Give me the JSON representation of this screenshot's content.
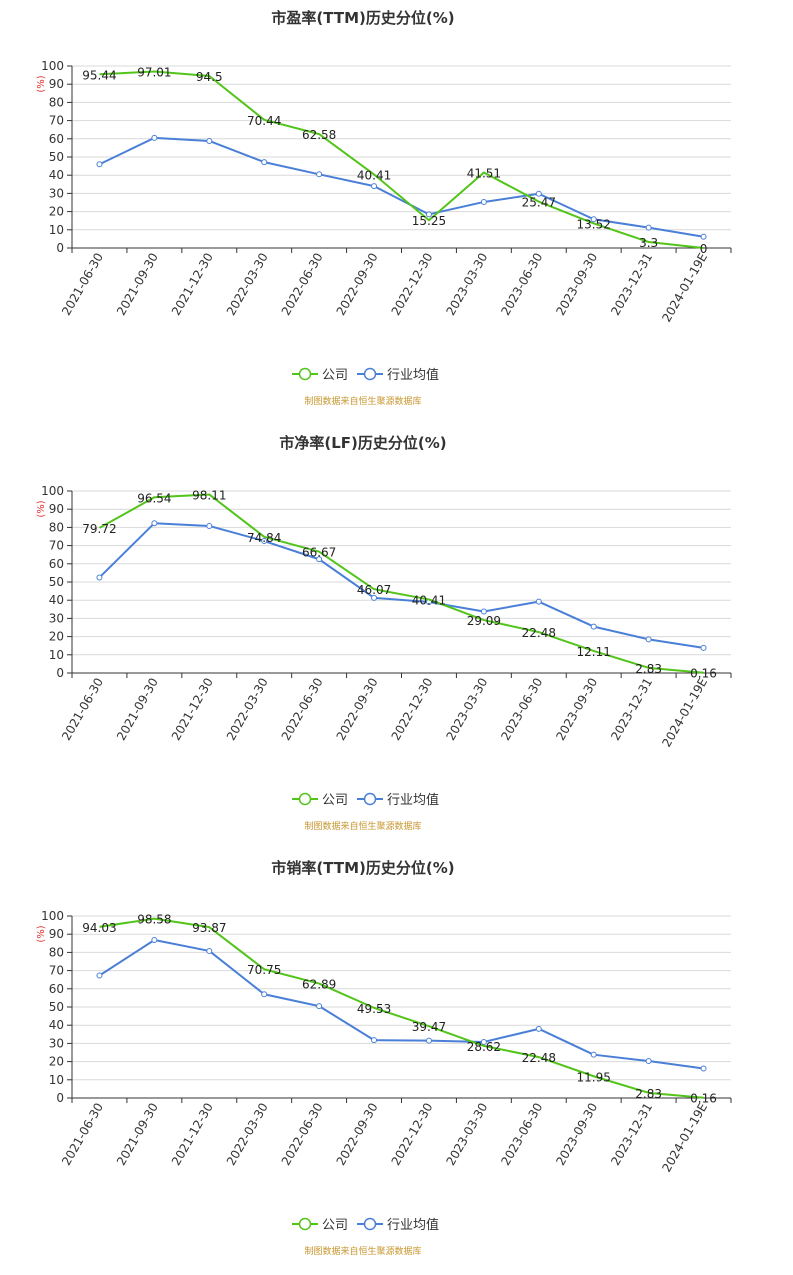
{
  "colors": {
    "company": "#52c41a",
    "industry": "#4a7fd8",
    "source": "#c8962e",
    "unit": "#e03030",
    "grid": "#d9d9d9",
    "axis": "#333333"
  },
  "legend": {
    "company": "公司",
    "industry": "行业均值"
  },
  "source_note": "制图数据来自恒生聚源数据库",
  "chart_data": [
    {
      "type": "line",
      "title": "市盈率(TTM)历史分位(%)",
      "ylabel": "(%)",
      "ylim": [
        0,
        100
      ],
      "yticks": [
        0,
        10,
        20,
        30,
        40,
        50,
        60,
        70,
        80,
        90,
        100
      ],
      "categories": [
        "2021-06-30",
        "2021-09-30",
        "2021-12-30",
        "2022-03-30",
        "2022-06-30",
        "2022-09-30",
        "2022-12-30",
        "2023-03-30",
        "2023-06-30",
        "2023-09-30",
        "2023-12-31",
        "2024-01-19E"
      ],
      "series": [
        {
          "name": "公司",
          "values": [
            95.44,
            97.01,
            94.5,
            70.44,
            62.58,
            40.41,
            15.25,
            41.51,
            25.47,
            13.52,
            3.3,
            0
          ],
          "labels": [
            "95.44",
            "97.01",
            "94.5",
            "70.44",
            "62.58",
            "40.41",
            "15.25",
            "41.51",
            "25.47",
            "13.52",
            "3.3",
            "0"
          ]
        },
        {
          "name": "行业均值",
          "values": [
            46,
            60.5,
            58.8,
            47.2,
            40.5,
            34,
            18.5,
            25.3,
            29.8,
            15.8,
            11.2,
            6.2
          ]
        }
      ]
    },
    {
      "type": "line",
      "title": "市净率(LF)历史分位(%)",
      "ylabel": "(%)",
      "ylim": [
        0,
        100
      ],
      "yticks": [
        0,
        10,
        20,
        30,
        40,
        50,
        60,
        70,
        80,
        90,
        100
      ],
      "categories": [
        "2021-06-30",
        "2021-09-30",
        "2021-12-30",
        "2022-03-30",
        "2022-06-30",
        "2022-09-30",
        "2022-12-30",
        "2023-03-30",
        "2023-06-30",
        "2023-09-30",
        "2023-12-31",
        "2024-01-19E"
      ],
      "series": [
        {
          "name": "公司",
          "values": [
            79.72,
            96.54,
            98.11,
            74.84,
            66.67,
            46.07,
            40.41,
            29.09,
            22.48,
            12.11,
            2.83,
            0.16
          ],
          "labels": [
            "79.72",
            "96.54",
            "98.11",
            "74.84",
            "66.67",
            "46.07",
            "40.41",
            "29.09",
            "22.48",
            "12.11",
            "2.83",
            "0.16"
          ]
        },
        {
          "name": "行业均值",
          "values": [
            52.5,
            82.3,
            80.8,
            72.5,
            62.5,
            41.3,
            39,
            33.8,
            39.2,
            25.5,
            18.5,
            13.8
          ]
        }
      ]
    },
    {
      "type": "line",
      "title": "市销率(TTM)历史分位(%)",
      "ylabel": "(%)",
      "ylim": [
        0,
        100
      ],
      "yticks": [
        0,
        10,
        20,
        30,
        40,
        50,
        60,
        70,
        80,
        90,
        100
      ],
      "categories": [
        "2021-06-30",
        "2021-09-30",
        "2021-12-30",
        "2022-03-30",
        "2022-06-30",
        "2022-09-30",
        "2022-12-30",
        "2023-03-30",
        "2023-06-30",
        "2023-09-30",
        "2023-12-31",
        "2024-01-19E"
      ],
      "series": [
        {
          "name": "公司",
          "values": [
            94.03,
            98.58,
            93.87,
            70.75,
            62.89,
            49.53,
            39.47,
            28.62,
            22.48,
            11.95,
            2.83,
            0.16
          ],
          "labels": [
            "94.03",
            "98.58",
            "93.87",
            "70.75",
            "62.89",
            "49.53",
            "39.47",
            "28.62",
            "22.48",
            "11.95",
            "2.83",
            "0.16"
          ]
        },
        {
          "name": "行业均值",
          "values": [
            67.3,
            86.8,
            80.8,
            57,
            50.5,
            31.8,
            31.5,
            30.8,
            38,
            23.8,
            20.3,
            16.2
          ]
        }
      ]
    }
  ]
}
